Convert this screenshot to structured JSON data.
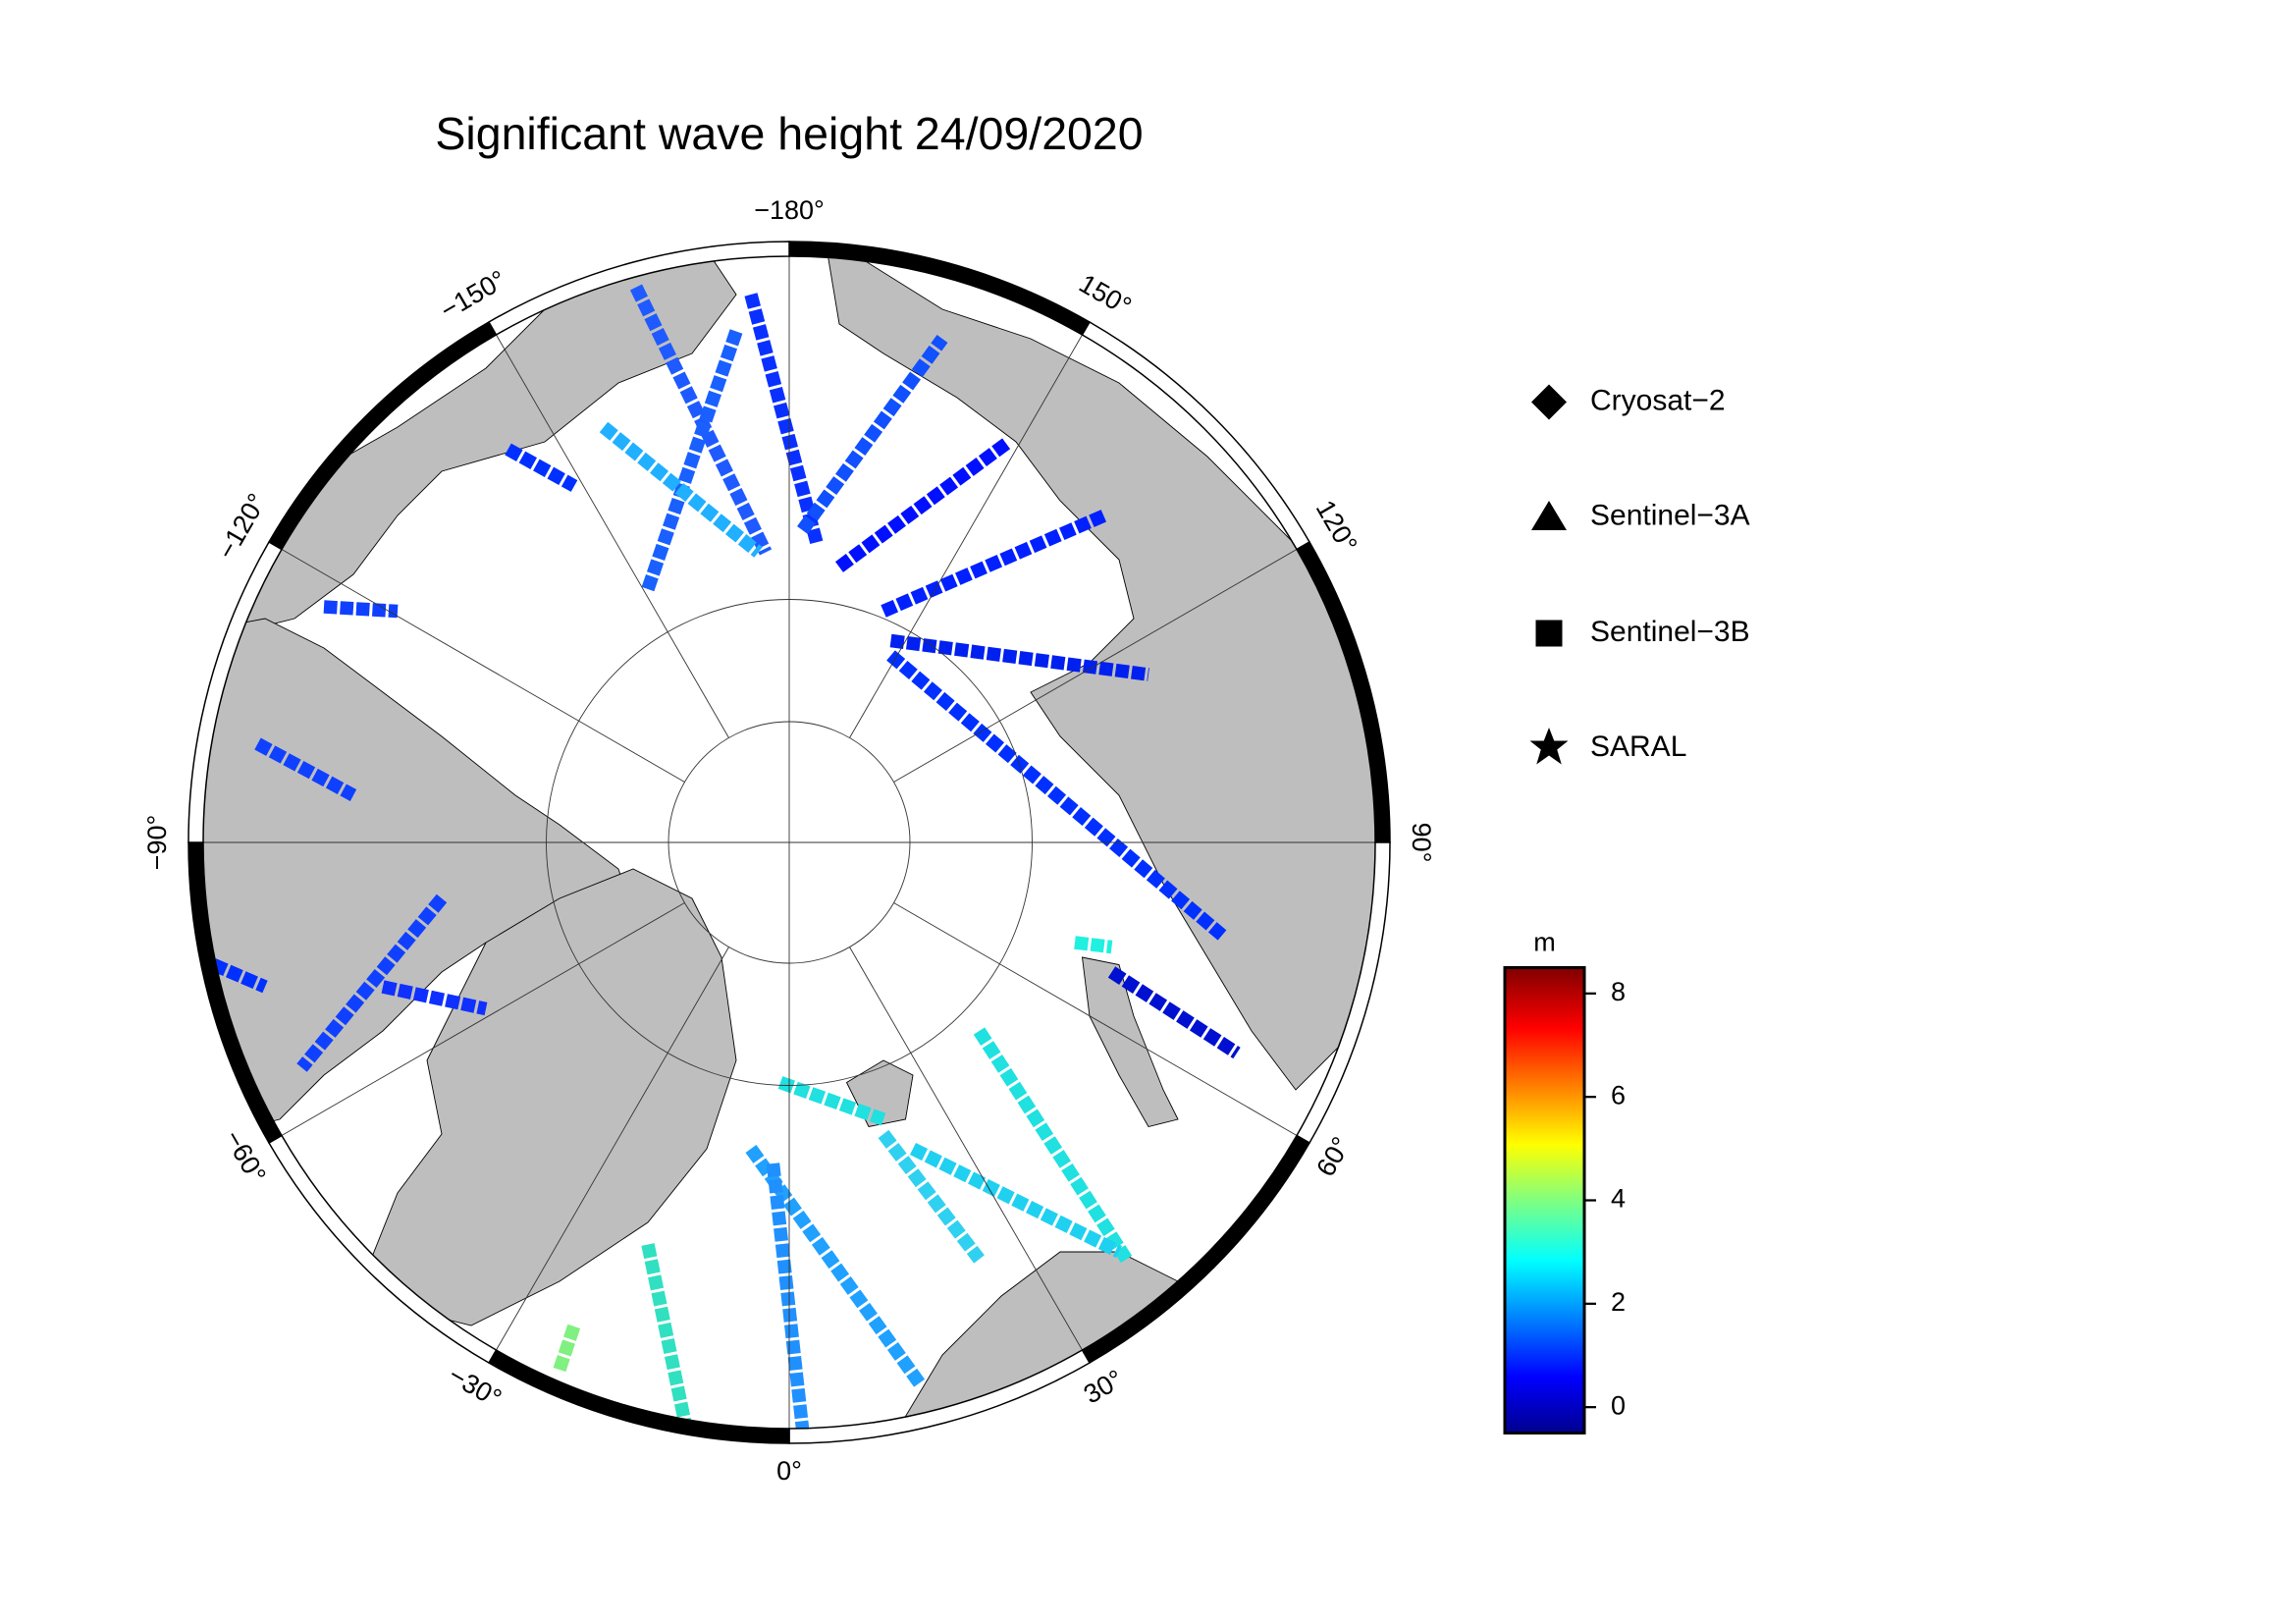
{
  "title": "Significant wave height 24/09/2020",
  "longitude_labels": [
    "−180°",
    "150°",
    "120°",
    "90°",
    "60°",
    "30°",
    "0°",
    "−30°",
    "−60°",
    "−90°",
    "−120°",
    "−150°"
  ],
  "legend": [
    "Cryosat−2",
    "Sentinel−3A",
    "Sentinel−3B",
    "SARAL"
  ],
  "colorbar": {
    "label": "m",
    "lim": [
      -0.5,
      8.5
    ],
    "ticks": [
      0,
      2,
      4,
      6,
      8
    ]
  }
}
